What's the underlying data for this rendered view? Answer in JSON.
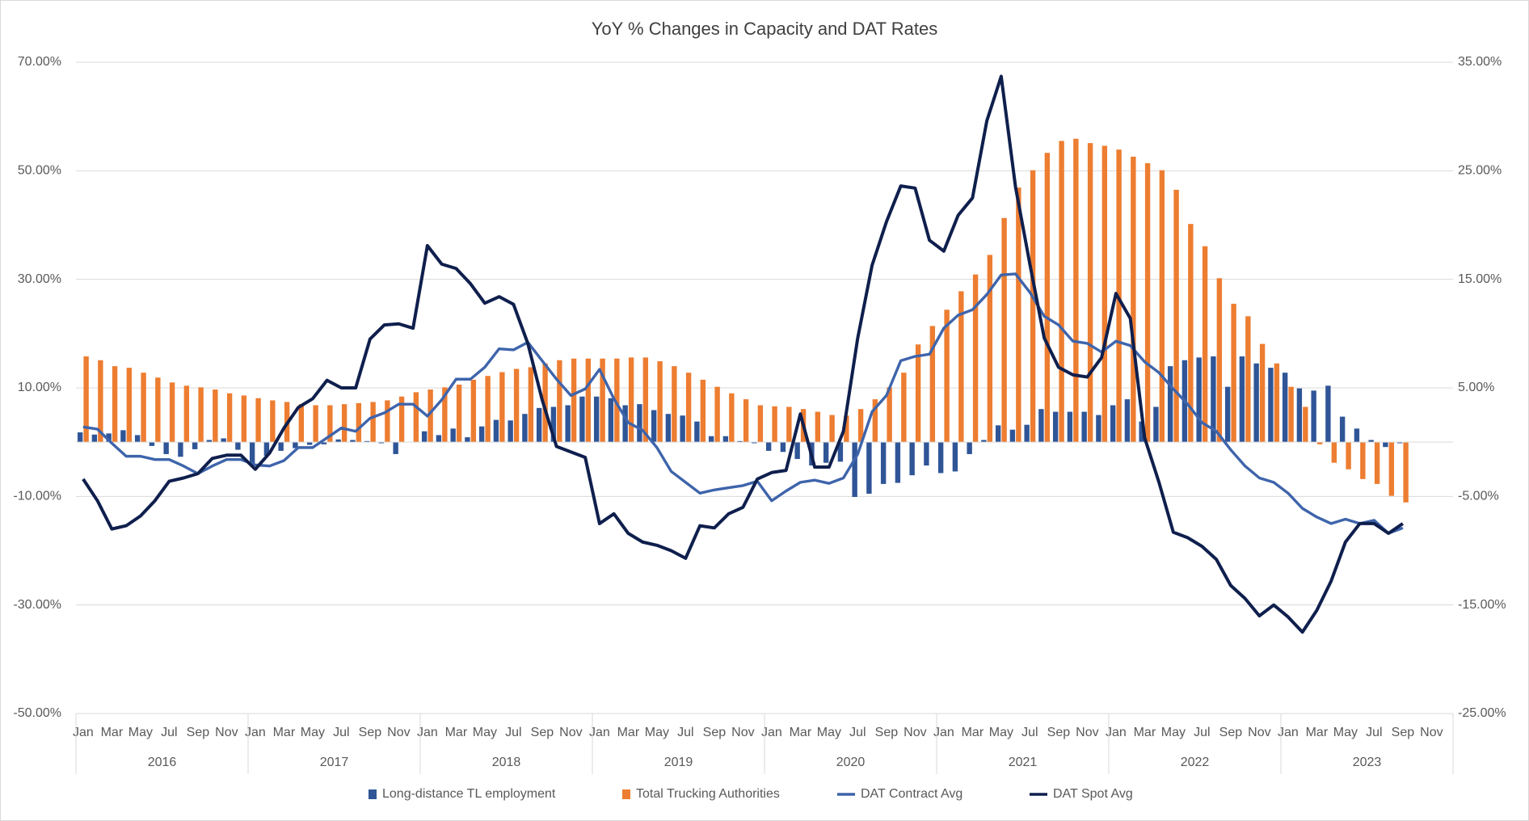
{
  "chart_data": {
    "type": "combo",
    "title": "YoY % Changes in Capacity and DAT Rates",
    "categories": [
      "Jan",
      null,
      "Mar",
      null,
      "May",
      null,
      "Jul",
      null,
      "Sep",
      null,
      "Nov",
      null,
      "Jan",
      null,
      "Mar",
      null,
      "May",
      null,
      "Jul",
      null,
      "Sep",
      null,
      "Nov",
      null,
      "Jan",
      null,
      "Mar",
      null,
      "May",
      null,
      "Jul",
      null,
      "Sep",
      null,
      "Nov",
      null,
      "Jan",
      null,
      "Mar",
      null,
      "May",
      null,
      "Jul",
      null,
      "Sep",
      null,
      "Nov",
      null,
      "Jan",
      null,
      "Mar",
      null,
      "May",
      null,
      "Jul",
      null,
      "Sep",
      null,
      "Nov",
      null,
      "Jan",
      null,
      "Mar",
      null,
      "May",
      null,
      "Jul",
      null,
      "Sep",
      null,
      "Nov",
      null,
      "Jan",
      null,
      "Mar",
      null,
      "May",
      null,
      "Jul",
      null,
      "Sep",
      null,
      "Nov",
      null,
      "Jan",
      null,
      "Mar",
      null,
      "May",
      null,
      "Jul",
      null,
      "Sep",
      null,
      "Nov",
      null
    ],
    "years": [
      "2016",
      "2017",
      "2018",
      "2019",
      "2020",
      "2021",
      "2022",
      "2023"
    ],
    "ylim": [
      -50,
      70
    ],
    "yticks": [
      {
        "value": -50,
        "label": "-50.00%"
      },
      {
        "value": -30,
        "label": "-30.00%"
      },
      {
        "value": -10,
        "label": "-10.00%"
      },
      {
        "value": 10,
        "label": "10.00%"
      },
      {
        "value": 30,
        "label": "30.00%"
      },
      {
        "value": 50,
        "label": "50.00%"
      },
      {
        "value": 70,
        "label": "70.00%"
      }
    ],
    "y2lim": [
      -25,
      35
    ],
    "y2ticks": [
      {
        "value": -25,
        "label": "-25.00%"
      },
      {
        "value": -15,
        "label": "-15.00%"
      },
      {
        "value": -5,
        "label": "-5.00%"
      },
      {
        "value": 5,
        "label": "5.00%"
      },
      {
        "value": 15,
        "label": "15.00%"
      },
      {
        "value": 25,
        "label": "25.00%"
      },
      {
        "value": 35,
        "label": "35.00%"
      }
    ],
    "grid": true,
    "legend": "bottom",
    "series": [
      {
        "name": "Long-distance TL employment",
        "type": "bar",
        "color": "#2f5597",
        "values": [
          1.8,
          1.4,
          1.6,
          2.2,
          1.3,
          -0.7,
          -2.2,
          -2.7,
          -1.3,
          0.4,
          0.7,
          -1.4,
          -4.3,
          -2.5,
          -1.6,
          -1.1,
          -0.5,
          -0.4,
          0.5,
          0.4,
          0.2,
          -0.2,
          -2.2,
          0,
          2.0,
          1.3,
          2.5,
          0.9,
          2.9,
          4.1,
          4.0,
          5.2,
          6.3,
          6.5,
          6.8,
          8.4,
          8.4,
          8.1,
          6.8,
          7.0,
          5.9,
          5.2,
          4.9,
          3.8,
          1.1,
          1.1,
          0.2,
          -0.2,
          -1.6,
          -1.8,
          -3.1,
          -4.3,
          -3.8,
          -3.6,
          -10.1,
          -9.5,
          -7.7,
          -7.5,
          -6.1,
          -4.3,
          -5.7,
          -5.4,
          -2.2,
          0.4,
          3.1,
          2.3,
          3.2,
          6.1,
          5.6,
          5.6,
          5.6,
          5.0,
          6.8,
          7.9,
          3.8,
          6.5,
          14.0,
          15.1,
          15.6,
          15.8,
          10.2,
          15.8,
          14.5,
          13.7,
          12.8,
          9.9,
          9.5,
          10.4,
          4.7,
          2.5,
          0.4,
          -0.9,
          -0.2,
          null,
          null,
          null
        ]
      },
      {
        "name": "Total Trucking Authorities",
        "type": "bar",
        "color": "#ed7d31",
        "values": [
          15.8,
          15.1,
          14.0,
          13.7,
          12.8,
          11.9,
          11.0,
          10.4,
          10.1,
          9.7,
          9.0,
          8.6,
          8.1,
          7.7,
          7.4,
          7.0,
          6.8,
          6.8,
          7.0,
          7.2,
          7.4,
          7.7,
          8.4,
          9.2,
          9.7,
          10.1,
          10.6,
          11.5,
          12.2,
          12.9,
          13.5,
          13.8,
          14.5,
          15.1,
          15.4,
          15.4,
          15.4,
          15.4,
          15.6,
          15.6,
          14.9,
          14.0,
          12.8,
          11.5,
          10.2,
          9.0,
          7.9,
          6.8,
          6.6,
          6.5,
          6.1,
          5.6,
          5.0,
          4.9,
          6.1,
          7.9,
          10.1,
          12.8,
          18.0,
          21.4,
          24.4,
          27.8,
          30.9,
          34.5,
          41.3,
          46.9,
          50.1,
          53.3,
          55.5,
          55.9,
          55.1,
          54.6,
          53.9,
          52.6,
          51.4,
          50.1,
          46.5,
          40.2,
          36.1,
          30.2,
          25.5,
          23.2,
          18.1,
          14.5,
          10.2,
          6.5,
          -0.4,
          -3.8,
          -5.0,
          -6.8,
          -7.7,
          -9.9,
          -11.1,
          null,
          null,
          null
        ]
      },
      {
        "name": "DAT Contract Avg",
        "type": "line",
        "axis": "y2",
        "color": "#3e64ab",
        "values": [
          1.4,
          1.2,
          -0.1,
          -1.3,
          -1.3,
          -1.6,
          -1.6,
          -2.2,
          -2.9,
          -2.2,
          -1.6,
          -1.6,
          -2.1,
          -2.2,
          -1.7,
          -0.5,
          -0.5,
          0.4,
          1.3,
          1.0,
          2.2,
          2.7,
          3.5,
          3.5,
          2.4,
          3.9,
          5.8,
          5.8,
          6.9,
          8.6,
          8.5,
          9.2,
          7.5,
          5.8,
          4.3,
          4.9,
          6.7,
          4.0,
          1.8,
          1.1,
          -0.5,
          -2.7,
          -3.7,
          -4.7,
          -4.4,
          -4.2,
          -4.0,
          -3.6,
          -5.4,
          -4.5,
          -3.7,
          -3.5,
          -3.8,
          -3.3,
          -1.1,
          2.8,
          4.3,
          7.5,
          7.9,
          8.1,
          10.5,
          11.7,
          12.2,
          13.6,
          15.4,
          15.5,
          13.8,
          11.6,
          10.8,
          9.3,
          9.1,
          8.3,
          9.3,
          8.9,
          7.4,
          6.4,
          4.9,
          3.5,
          1.8,
          1.0,
          -0.7,
          -2.2,
          -3.3,
          -3.7,
          -4.7,
          -6.1,
          -6.9,
          -7.5,
          -7.1,
          -7.5,
          -7.2,
          -8.4,
          -7.9,
          null,
          null,
          null
        ]
      },
      {
        "name": "DAT Spot Avg",
        "type": "line",
        "axis": "y2",
        "color": "#0f1f4d",
        "values": [
          -3.4,
          -5.4,
          -8.0,
          -7.7,
          -6.8,
          -5.4,
          -3.6,
          -3.3,
          -2.9,
          -1.5,
          -1.2,
          -1.2,
          -2.5,
          -1.0,
          1.3,
          3.2,
          4.0,
          5.7,
          5.0,
          5.0,
          9.5,
          10.8,
          10.9,
          10.5,
          18.1,
          16.4,
          16.0,
          14.6,
          12.8,
          13.4,
          12.7,
          9.1,
          3.9,
          -0.4,
          -0.9,
          -1.4,
          -7.5,
          -6.6,
          -8.4,
          -9.2,
          -9.5,
          -10.0,
          -10.7,
          -7.7,
          -7.9,
          -6.6,
          -6.0,
          -3.4,
          -2.8,
          -2.6,
          2.6,
          -2.3,
          -2.3,
          1.0,
          9.6,
          16.3,
          20.3,
          23.6,
          23.4,
          18.6,
          17.6,
          20.9,
          22.5,
          29.6,
          33.7,
          23.5,
          16.4,
          9.6,
          6.9,
          6.2,
          6.0,
          7.8,
          13.7,
          11.4,
          0.4,
          -3.7,
          -8.3,
          -8.8,
          -9.6,
          -10.8,
          -13.2,
          -14.4,
          -16.0,
          -15.0,
          -16.1,
          -17.5,
          -15.5,
          -12.8,
          -9.2,
          -7.5,
          -7.5,
          -8.4,
          -7.5,
          null,
          null,
          null
        ]
      }
    ]
  }
}
